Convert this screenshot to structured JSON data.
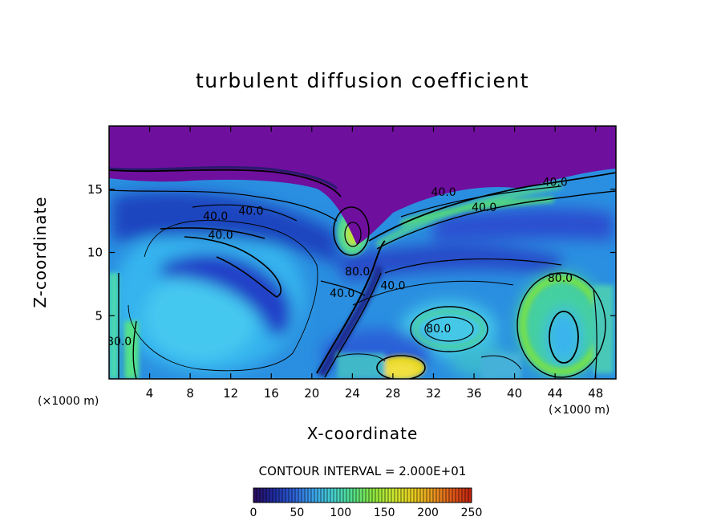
{
  "chart_data": {
    "type": "heatmap",
    "title": "turbulent diffusion coefficient",
    "xlabel": "X-coordinate",
    "ylabel": "Z-coordinate",
    "x_unit_left": "(×1000 m)",
    "x_unit_right": "(×1000 m)",
    "xlim": [
      0,
      50
    ],
    "ylim": [
      0,
      20
    ],
    "x_ticks": [
      4,
      8,
      12,
      16,
      20,
      24,
      28,
      32,
      36,
      40,
      44,
      48
    ],
    "y_ticks": [
      5,
      10,
      15
    ],
    "contour_interval_text": "CONTOUR INTERVAL = 2.000E+01",
    "contour_interval": 20,
    "contour_labels": [
      {
        "text": "40.0",
        "x": 14.0,
        "z": 13.3
      },
      {
        "text": "40.0",
        "x": 10.5,
        "z": 12.9
      },
      {
        "text": "40.0",
        "x": 11.0,
        "z": 11.4
      },
      {
        "text": "40.0",
        "x": 33.0,
        "z": 14.8
      },
      {
        "text": "40.0",
        "x": 37.0,
        "z": 13.6
      },
      {
        "text": "40.0",
        "x": 44.0,
        "z": 15.6
      },
      {
        "text": "40.0",
        "x": 28.0,
        "z": 7.4
      },
      {
        "text": "40.0",
        "x": 23.0,
        "z": 6.8
      },
      {
        "text": "80.0",
        "x": 24.5,
        "z": 8.5
      },
      {
        "text": "80.0",
        "x": 32.5,
        "z": 4.0
      },
      {
        "text": "80.0",
        "x": 44.5,
        "z": 8.0
      },
      {
        "text": "80.0",
        "x": 1.0,
        "z": 3.0
      }
    ],
    "colorbar": {
      "min": 0,
      "max": 250,
      "ticks": [
        0,
        50,
        100,
        150,
        200,
        250
      ],
      "colors": [
        "#2a0a5e",
        "#1f2a9e",
        "#2c5fd6",
        "#3aa0e8",
        "#45d0d0",
        "#52e08a",
        "#8ae640",
        "#c8e830",
        "#e8d020",
        "#e89a20",
        "#e05a1a",
        "#c02010"
      ]
    },
    "grid": false,
    "legend": "colorbar-bottom"
  }
}
